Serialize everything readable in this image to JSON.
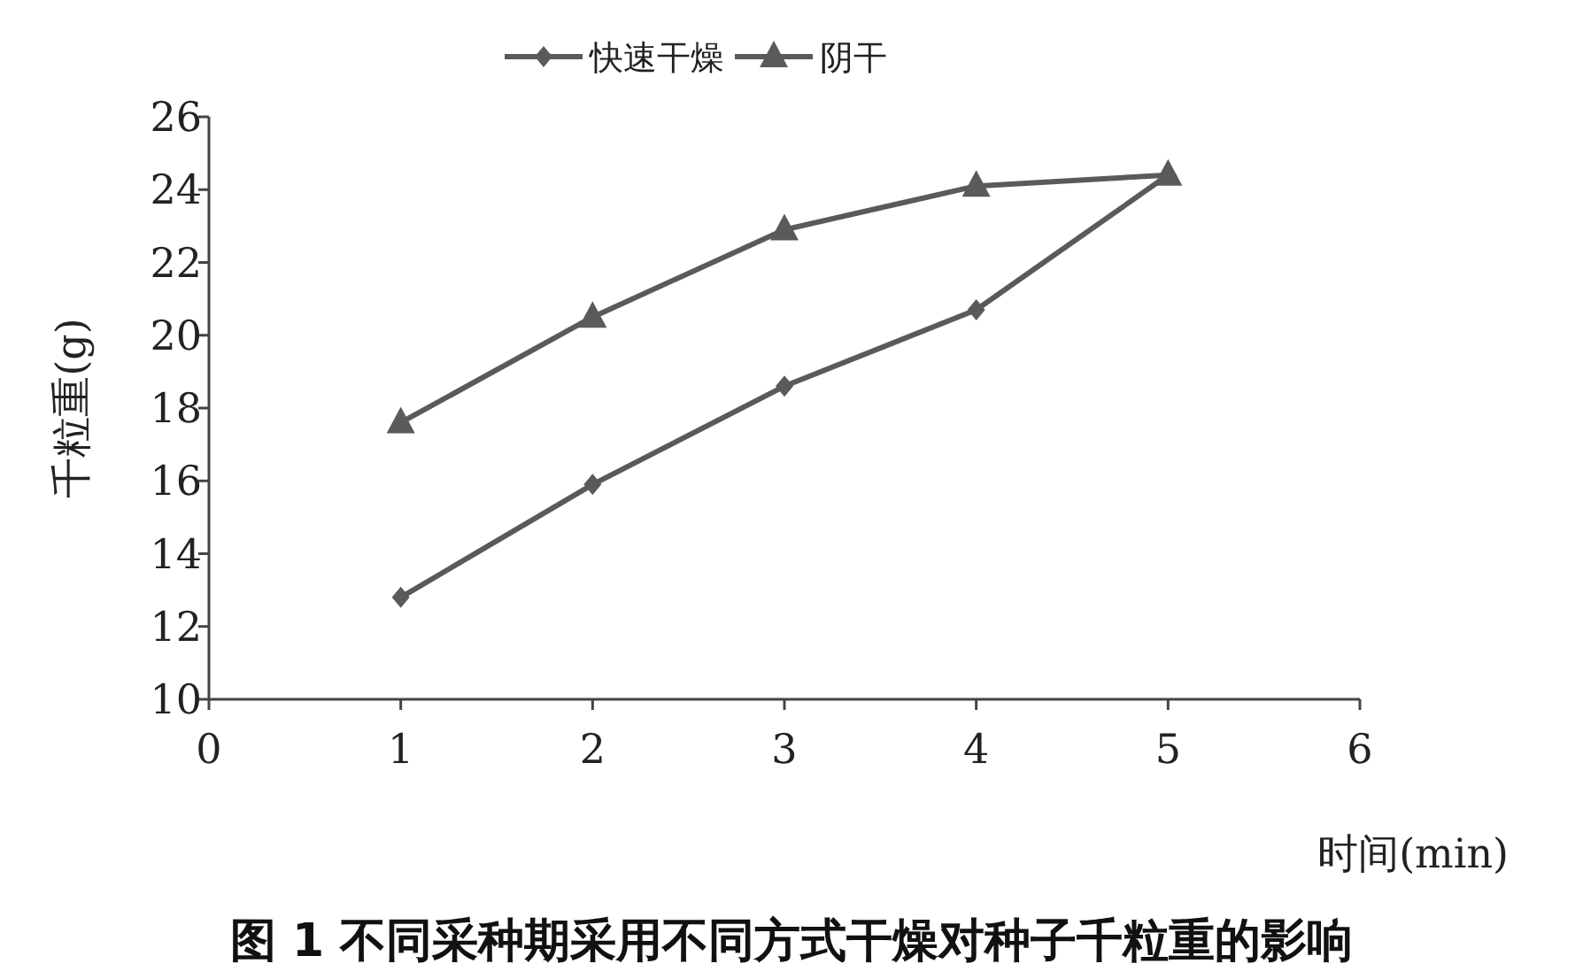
{
  "chart_data": {
    "type": "line",
    "title": "图 1  不同采种期采用不同方式干燥对种子千粒重的影响",
    "xlabel": "时间(min)",
    "ylabel": "千粒重(g)",
    "x": [
      1,
      2,
      3,
      4,
      5
    ],
    "xlim": [
      0,
      6
    ],
    "xticks": [
      0,
      1,
      2,
      3,
      4,
      5,
      6
    ],
    "ylim": [
      10,
      26
    ],
    "yticks": [
      10,
      12,
      14,
      16,
      18,
      20,
      22,
      24,
      26
    ],
    "grid": false,
    "legend": "top",
    "line_style": "solid",
    "series": [
      {
        "name": "快速干燥",
        "color": "#5a5a5a",
        "marker": "diamond",
        "values": [
          12.8,
          15.9,
          18.6,
          20.7,
          24.4
        ]
      },
      {
        "name": "阴干",
        "color": "#5a5a5a",
        "marker": "triangle",
        "values": [
          17.6,
          20.5,
          22.9,
          24.1,
          24.4
        ]
      }
    ]
  }
}
